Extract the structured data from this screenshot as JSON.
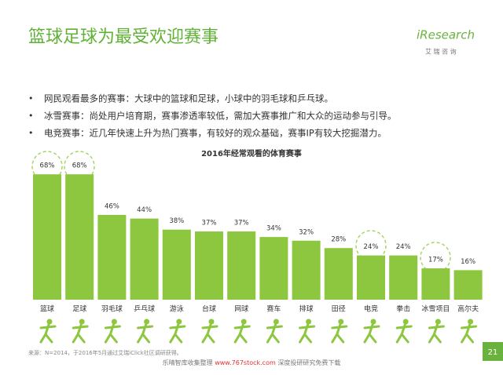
{
  "header": {
    "title": "篮球足球为最受欢迎赛事",
    "logo": "iResearch",
    "logo_sub": "艾 瑞 咨 询"
  },
  "bullets": [
    "网民观看最多的赛事：大球中的篮球和足球，小球中的羽毛球和乒乓球。",
    "冰雪赛事：尚处用户培育期，赛事渗透率较低，需加大赛事推广和大众的运动参与引导。",
    "电竞赛事：近几年快速上升为热门赛事，有较好的观众基础，赛事IP有较大挖掘潜力。"
  ],
  "chart_data": {
    "type": "bar",
    "title": "2016年经常观看的体育赛事",
    "categories": [
      "篮球",
      "足球",
      "羽毛球",
      "乒乓球",
      "游泳",
      "台球",
      "网球",
      "赛车",
      "排球",
      "田径",
      "电竞",
      "拳击",
      "冰雪项目",
      "高尔夫"
    ],
    "values": [
      68,
      68,
      46,
      44,
      38,
      37,
      37,
      34,
      32,
      28,
      24,
      24,
      17,
      16
    ],
    "value_labels": [
      "68%",
      "68%",
      "46%",
      "44%",
      "38%",
      "37%",
      "37%",
      "34%",
      "32%",
      "28%",
      "24%",
      "24%",
      "17%",
      "16%"
    ],
    "color": "#8dc63f"
  },
  "source": "来源：N=2014，于2016年5月通过艾瑞iClick社区调研获得。",
  "footer": {
    "prefix": "乐晴智库收集整理 ",
    "url": "www.767stock.com",
    "suffix": " 深度投研研究免费下载"
  },
  "page_number": "21"
}
